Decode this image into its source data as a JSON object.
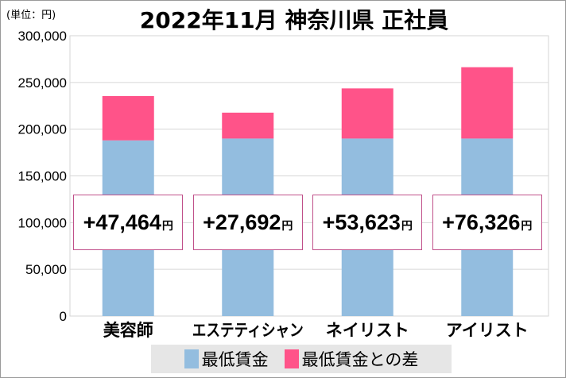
{
  "chart_data": {
    "type": "bar",
    "stacked": true,
    "title": "2022年11月 神奈川県 正社員",
    "unit_label": "(単位：円)",
    "categories": [
      "美容師",
      "エステティシャン",
      "ネイリスト",
      "アイリスト"
    ],
    "series": [
      {
        "name": "最低賃金",
        "color": "#93bddf",
        "values": [
          188000,
          190000,
          190000,
          190000
        ]
      },
      {
        "name": "最低賃金との差",
        "color": "#ff5389",
        "values": [
          47464,
          27692,
          53623,
          76326
        ]
      }
    ],
    "diff_labels": [
      "+47,464",
      "+27,692",
      "+53,623",
      "+76,326"
    ],
    "diff_unit": "円",
    "ylim": [
      0,
      300000
    ],
    "yticks": [
      0,
      50000,
      100000,
      150000,
      200000,
      250000,
      300000
    ],
    "ytick_labels": [
      "0",
      "50,000",
      "100,000",
      "150,000",
      "200,000",
      "250,000",
      "300,000"
    ],
    "grid": true,
    "legend_position": "bottom"
  }
}
